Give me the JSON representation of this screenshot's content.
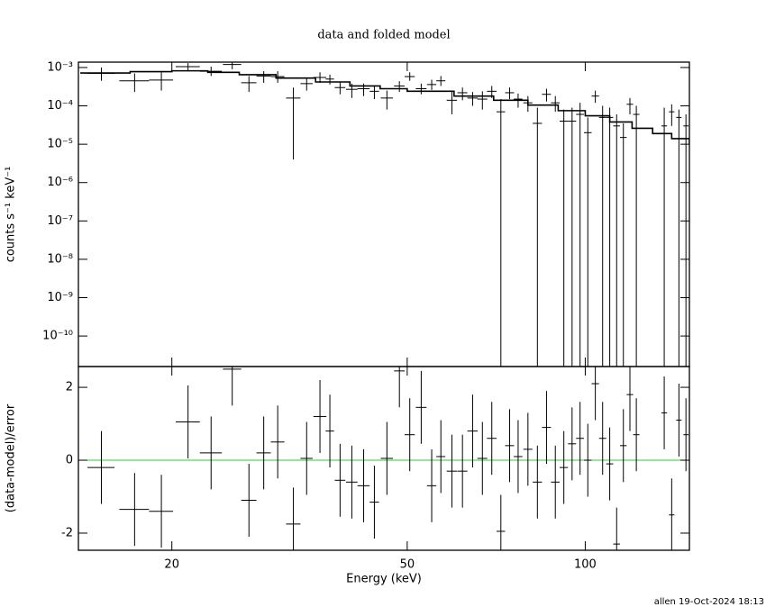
{
  "chart_data": {
    "type": "errorbar",
    "title": "data and folded model",
    "ylabel": "counts s⁻¹ keV⁻¹",
    "residual_ylabel": "(data-model)/error",
    "xlabel": "Energy (keV)",
    "footer": "allen 19-Oct-2024 18:13",
    "xscale": "log",
    "xlim": [
      13.9,
      150
    ],
    "xticks": [
      20,
      50,
      100
    ],
    "yscale": "log",
    "ylim": [
      1.6e-11,
      0.00138
    ],
    "yticks": [
      {
        "value": 1e-10,
        "label": "10⁻¹⁰"
      },
      {
        "value": 1e-09,
        "label": "10⁻⁹"
      },
      {
        "value": 1e-08,
        "label": "10⁻⁸"
      },
      {
        "value": 1e-07,
        "label": "10⁻⁷"
      },
      {
        "value": 1e-06,
        "label": "10⁻⁶"
      },
      {
        "value": 1e-05,
        "label": "10⁻⁵"
      },
      {
        "value": 0.0001,
        "label": "10⁻⁴"
      },
      {
        "value": 0.001,
        "label": "10⁻³"
      }
    ],
    "color": "#000000",
    "model_color": "#000000",
    "zero_line_color": "#33cc33",
    "x": [
      15.2,
      17.3,
      19.2,
      21.3,
      23.3,
      25.3,
      27.0,
      28.6,
      30.2,
      32.1,
      33.8,
      35.6,
      37.0,
      38.5,
      40.3,
      42.2,
      44.0,
      46.2,
      48.5,
      50.5,
      52.8,
      55.0,
      57.0,
      59.5,
      62.0,
      64.5,
      67.0,
      69.5,
      72.0,
      74.5,
      77.0,
      80.0,
      83.0,
      86.0,
      89.0,
      92.0,
      95.0,
      98.0,
      101,
      104,
      107,
      110,
      113,
      116,
      119,
      122,
      136,
      140,
      144,
      148
    ],
    "xerr": [
      0.8,
      1.0,
      0.9,
      1.0,
      1.0,
      0.9,
      0.8,
      0.8,
      0.8,
      0.9,
      0.8,
      0.9,
      0.6,
      0.8,
      0.9,
      1.0,
      0.8,
      1.1,
      1.0,
      1.0,
      1.1,
      1.0,
      1.0,
      1.2,
      1.2,
      1.3,
      1.3,
      1.3,
      1.2,
      1.3,
      1.3,
      1.4,
      1.5,
      1.5,
      1.5,
      1.5,
      1.5,
      1.5,
      1.5,
      1.5,
      1.5,
      1.5,
      1.5,
      1.5,
      1.5,
      1.5,
      1.5,
      1.5,
      1.5,
      1.5
    ],
    "values": [
      0.0007,
      0.00045,
      0.00047,
      0.00105,
      0.0008,
      0.0012,
      0.0004,
      0.0006,
      0.00058,
      0.00016,
      0.00038,
      0.00055,
      0.0005,
      0.0003,
      0.00027,
      0.00028,
      0.00024,
      0.00016,
      0.00033,
      0.00058,
      0.00028,
      0.00036,
      0.00045,
      0.00014,
      0.00022,
      0.00016,
      0.00015,
      0.00024,
      7e-05,
      0.00022,
      0.00015,
      0.00012,
      3.5e-05,
      0.0002,
      0.00012,
      4e-05,
      4e-05,
      6e-05,
      2e-05,
      0.00018,
      5e-05,
      5e-05,
      3e-05,
      1.5e-05,
      0.00011,
      6e-05,
      3e-05,
      7e-05,
      5e-05,
      3e-05
    ],
    "ylow": [
      0.00045,
      0.00023,
      0.00025,
      0.0008,
      0.0006,
      0.0009,
      0.00023,
      0.0004,
      0.0004,
      4e-06,
      0.00025,
      0.0004,
      0.00036,
      0.0002,
      0.00016,
      0.00018,
      0.00015,
      8e-05,
      0.00023,
      0.00045,
      0.0002,
      0.00026,
      0.00033,
      6e-05,
      0.00014,
      0.0001,
      8e-05,
      0.00016,
      1e-12,
      0.00015,
      9e-05,
      7e-05,
      1e-12,
      0.00013,
      7e-05,
      1e-12,
      1e-12,
      1e-12,
      1e-12,
      0.00012,
      1e-12,
      1e-12,
      1e-12,
      1e-12,
      6e-05,
      1e-12,
      1e-12,
      3e-05,
      1e-12,
      1e-12
    ],
    "yhigh": [
      0.001,
      0.0007,
      0.00075,
      0.0013,
      0.00105,
      0.0014,
      0.0006,
      0.0008,
      0.0008,
      0.0003,
      0.00055,
      0.00075,
      0.00065,
      0.00042,
      0.00038,
      0.00038,
      0.00034,
      0.00025,
      0.00044,
      0.00075,
      0.00038,
      0.00048,
      0.0006,
      0.00023,
      0.0003,
      0.00023,
      0.00024,
      0.00033,
      0.00015,
      0.0003,
      0.00021,
      0.00018,
      9e-05,
      0.00028,
      0.00018,
      8e-05,
      9e-05,
      0.00012,
      5e-05,
      0.00025,
      0.0001,
      9e-05,
      6e-05,
      3.5e-05,
      0.00016,
      0.0001,
      9e-05,
      0.00011,
      8e-05,
      6e-05
    ],
    "model": {
      "x": [
        14,
        17,
        20,
        23,
        26,
        30,
        35,
        40,
        45,
        50,
        60,
        70,
        80,
        90,
        100,
        110,
        120,
        130,
        140,
        150
      ],
      "values": [
        0.00072,
        0.00078,
        0.00082,
        0.00075,
        0.00065,
        0.00053,
        0.00042,
        0.00033,
        0.00028,
        0.00024,
        0.00018,
        0.00014,
        0.000105,
        7.5e-05,
        5.5e-05,
        3.8e-05,
        2.6e-05,
        1.9e-05,
        1.4e-05,
        1e-05
      ]
    },
    "residual_ylim": [
      -2.47,
      2.57
    ],
    "residual_yticks": [
      -2,
      0,
      2
    ],
    "residuals": [
      -0.2,
      -1.35,
      -1.4,
      1.05,
      0.2,
      2.5,
      -1.1,
      0.2,
      0.5,
      -1.75,
      0.05,
      1.2,
      0.8,
      -0.55,
      -0.6,
      -0.7,
      -1.15,
      0.05,
      2.45,
      0.7,
      1.45,
      -0.7,
      0.1,
      -0.3,
      -0.3,
      0.8,
      0.05,
      0.6,
      -1.95,
      0.4,
      0.1,
      0.3,
      -0.6,
      0.9,
      -0.6,
      -0.2,
      0.45,
      0.6,
      0.0,
      2.1,
      0.6,
      -0.1,
      -2.3,
      0.4,
      1.8,
      0.7,
      1.3,
      -1.5,
      1.1,
      0.7
    ],
    "residual_errors": [
      1,
      1,
      1,
      1,
      1,
      1,
      1,
      1,
      1,
      1,
      1,
      1,
      1,
      1,
      1,
      1,
      1,
      1,
      1,
      1,
      1,
      1,
      1,
      1,
      1,
      1,
      1,
      1,
      1,
      1,
      1,
      1,
      1,
      1,
      1,
      1,
      1,
      1,
      1,
      1,
      1,
      1,
      1,
      1,
      1,
      1,
      1,
      1,
      1,
      1
    ]
  }
}
